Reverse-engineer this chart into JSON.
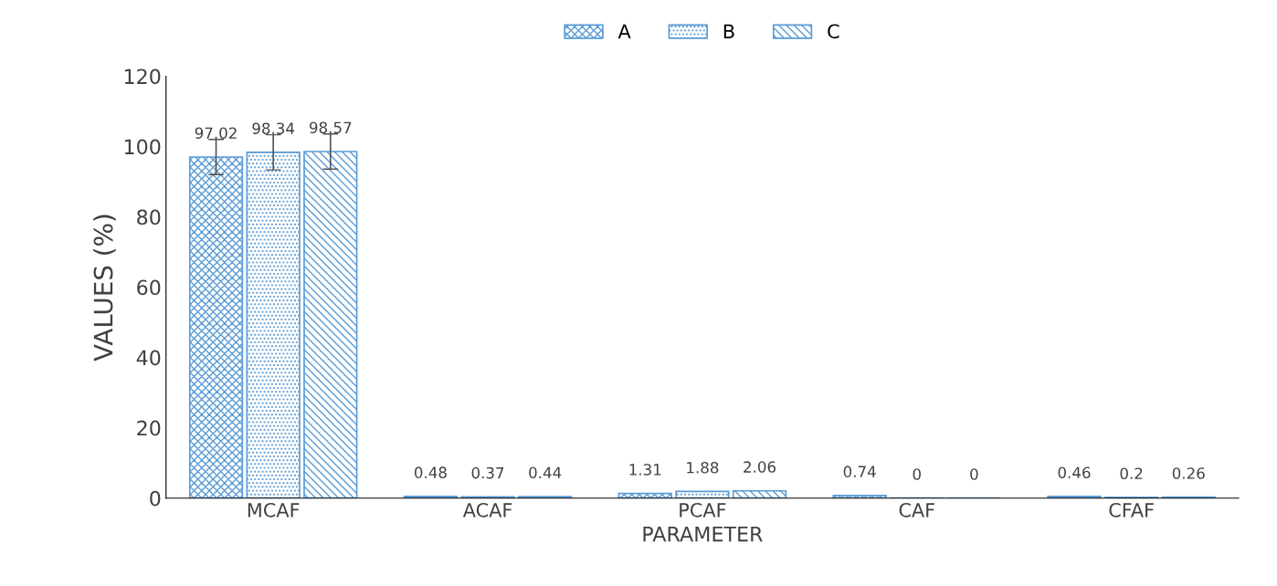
{
  "chart_data": {
    "type": "bar",
    "xlabel": "PARAMETER",
    "ylabel": "VALUES (%)",
    "categories": [
      "MCAF",
      "ACAF",
      "PCAF",
      "CAF",
      "CFAF"
    ],
    "series": [
      {
        "name": "A",
        "color": "#5b9bd5",
        "values": [
          97.02,
          0.48,
          1.31,
          0.74,
          0.46
        ],
        "errors": [
          5,
          null,
          null,
          null,
          null
        ]
      },
      {
        "name": "B",
        "color": "#5b9bd5",
        "values": [
          98.34,
          0.37,
          1.88,
          0,
          0.2
        ],
        "errors": [
          5,
          null,
          null,
          null,
          null
        ]
      },
      {
        "name": "C",
        "color": "#5b9bd5",
        "values": [
          98.57,
          0.44,
          2.06,
          0,
          0.26
        ],
        "errors": [
          5,
          null,
          null,
          null,
          null
        ]
      }
    ],
    "ylim": [
      0,
      120
    ],
    "yticks": [
      0,
      20,
      40,
      60,
      80,
      100,
      120
    ],
    "data_labels": true,
    "legend": "top",
    "grid": false
  }
}
